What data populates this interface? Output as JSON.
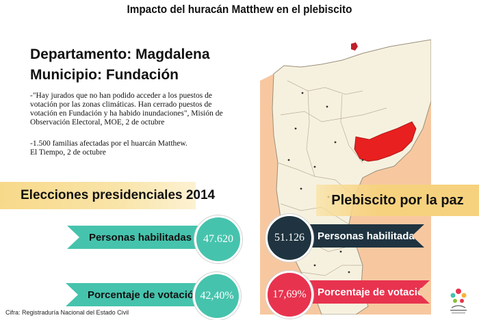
{
  "title": "Impacto del huracán Matthew en el plebiscito",
  "department": "Departamento: Magdalena",
  "municipality": "Municipio: Fundación",
  "quote": "-\"Hay jurados que no han podido acceder a los puestos de votación por las zonas climáticas. Han cerrado puestos de votación en Fundación y ha habido inundaciones\", Misión de Observación Electoral, MOE, 2 de octubre",
  "note_line1": "-1.500 familias afectadas por el huarcán Matthew.",
  "note_line2": "El Tiempo, 2 de octubre",
  "presidential": {
    "heading": "Elecciones presidenciales 2014",
    "enabled_label": "Personas habilitadas",
    "enabled_value": "47.620",
    "turnout_label": "Porcentaje de votación",
    "turnout_value": "42,40%"
  },
  "plebiscite": {
    "heading": "Plebiscito por la paz",
    "enabled_label": "Personas habilitadas",
    "enabled_value": "51.126",
    "turnout_label": "Porcentaje de votación",
    "turnout_value": "17,69%"
  },
  "source": "Cifra: Registraduría Nacional del Estado Civil",
  "colors": {
    "teal": "#46c3ad",
    "dark": "#1f3440",
    "red": "#e8334f",
    "banner": "#f6d27e",
    "map_land": "#f6f1df",
    "map_outside": "#f7c8a0",
    "highlight": "#e8201f"
  }
}
